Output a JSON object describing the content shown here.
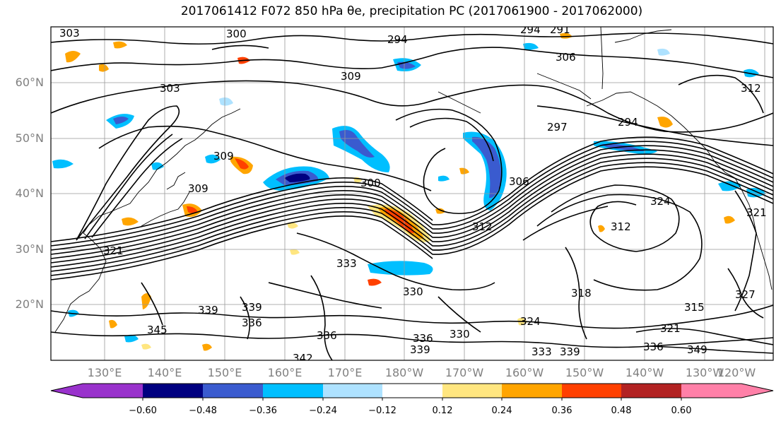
{
  "title": "2017061412 F072 850 hPa θe, precipitation PC (2017061900 - 2017062000)",
  "lat_labels": [
    "60°N",
    "50°N",
    "40°N",
    "30°N",
    "20°N"
  ],
  "lon_labels": [
    "130°E",
    "140°E",
    "150°E",
    "160°E",
    "170°E",
    "180°W",
    "170°W",
    "160°W",
    "150°W",
    "140°W",
    "130°W",
    "120°W"
  ],
  "contour_labels": [
    "303",
    "300",
    "294",
    "294",
    "291",
    "306",
    "303",
    "309",
    "297",
    "294",
    "312",
    "312",
    "309",
    "309",
    "300",
    "306",
    "324",
    "321",
    "312",
    "321",
    "333",
    "330",
    "318",
    "339",
    "339",
    "336",
    "345",
    "336",
    "336",
    "330",
    "339",
    "342",
    "333",
    "339",
    "315",
    "321",
    "336",
    "349",
    "327",
    "324"
  ],
  "colorbar": {
    "ticks": [
      "−0.60",
      "−0.48",
      "−0.36",
      "−0.24",
      "−0.12",
      "0.12",
      "0.24",
      "0.36",
      "0.48",
      "0.60"
    ],
    "colors": [
      "#9932CC",
      "#000080",
      "#3A5BCF",
      "#00BFFF",
      "#AEE2FF",
      "#FFFFFF",
      "#FFE680",
      "#FFA500",
      "#FF4000",
      "#B22222",
      "#FF80A8"
    ]
  },
  "precip_colors": {
    "neg_strong": "#3A5BCF",
    "neg_mid": "#00BFFF",
    "neg_weak": "#AEE2FF",
    "neg_darkest": "#000080",
    "pos_weak": "#FFE680",
    "pos_mid": "#FFA500",
    "pos_strong": "#FF4000",
    "pos_darkest": "#B22222"
  }
}
